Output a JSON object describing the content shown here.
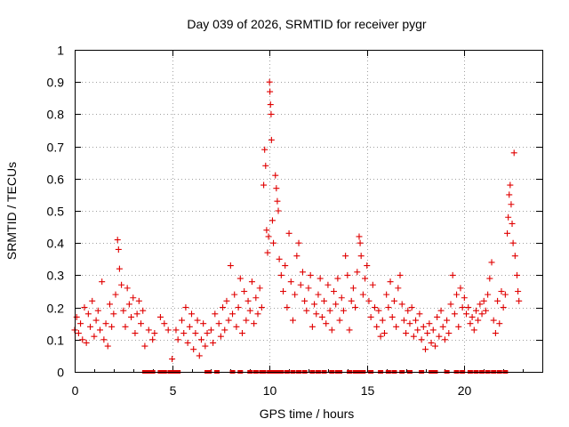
{
  "chart_data": {
    "type": "scatter",
    "title": "Day 039 of 2026, SRMTID for receiver pygr",
    "xlabel": "GPS time / hours",
    "ylabel": "SRMTID / TECUs",
    "xlim": [
      0,
      24
    ],
    "ylim": [
      0,
      1
    ],
    "xticks": [
      0,
      5,
      10,
      15,
      20
    ],
    "xtick_labels": [
      "0",
      "5",
      "10",
      "15",
      "20"
    ],
    "yticks": [
      0,
      0.1,
      0.2,
      0.3,
      0.4,
      0.5,
      0.6,
      0.7,
      0.8,
      0.9,
      1
    ],
    "ytick_labels": [
      "0",
      "0.1",
      "0.2",
      "0.3",
      "0.4",
      "0.5",
      "0.6",
      "0.7",
      "0.8",
      "0.9",
      "1"
    ],
    "grid": true,
    "marker": "+",
    "color": "#e00000",
    "series": [
      {
        "name": "SRMTID",
        "points": [
          [
            0.0,
            0.13
          ],
          [
            0.1,
            0.17
          ],
          [
            0.2,
            0.12
          ],
          [
            0.3,
            0.15
          ],
          [
            0.4,
            0.1
          ],
          [
            0.5,
            0.2
          ],
          [
            0.6,
            0.09
          ],
          [
            0.7,
            0.18
          ],
          [
            0.8,
            0.14
          ],
          [
            0.9,
            0.22
          ],
          [
            1.0,
            0.11
          ],
          [
            1.1,
            0.16
          ],
          [
            1.2,
            0.19
          ],
          [
            1.3,
            0.13
          ],
          [
            1.4,
            0.28
          ],
          [
            1.5,
            0.1
          ],
          [
            1.6,
            0.15
          ],
          [
            1.7,
            0.08
          ],
          [
            1.8,
            0.21
          ],
          [
            1.9,
            0.14
          ],
          [
            2.0,
            0.18
          ],
          [
            2.1,
            0.24
          ],
          [
            2.2,
            0.41
          ],
          [
            2.25,
            0.38
          ],
          [
            2.3,
            0.32
          ],
          [
            2.4,
            0.27
          ],
          [
            2.5,
            0.19
          ],
          [
            2.6,
            0.14
          ],
          [
            2.7,
            0.26
          ],
          [
            2.8,
            0.21
          ],
          [
            2.9,
            0.17
          ],
          [
            3.0,
            0.23
          ],
          [
            3.1,
            0.12
          ],
          [
            3.2,
            0.18
          ],
          [
            3.3,
            0.22
          ],
          [
            3.4,
            0.15
          ],
          [
            3.5,
            0.19
          ],
          [
            3.6,
            0.08
          ],
          [
            3.8,
            0.13
          ],
          [
            4.0,
            0.1
          ],
          [
            4.1,
            0.12
          ],
          [
            4.4,
            0.17
          ],
          [
            4.6,
            0.15
          ],
          [
            4.8,
            0.13
          ],
          [
            5.0,
            0.04
          ],
          [
            5.2,
            0.13
          ],
          [
            5.3,
            0.1
          ],
          [
            5.5,
            0.16
          ],
          [
            5.6,
            0.12
          ],
          [
            5.7,
            0.2
          ],
          [
            5.8,
            0.09
          ],
          [
            5.9,
            0.14
          ],
          [
            6.0,
            0.18
          ],
          [
            6.1,
            0.07
          ],
          [
            6.2,
            0.12
          ],
          [
            6.3,
            0.16
          ],
          [
            6.4,
            0.05
          ],
          [
            6.5,
            0.1
          ],
          [
            6.6,
            0.15
          ],
          [
            6.7,
            0.08
          ],
          [
            6.8,
            0.12
          ],
          [
            7.0,
            0.13
          ],
          [
            7.1,
            0.09
          ],
          [
            7.2,
            0.18
          ],
          [
            7.4,
            0.15
          ],
          [
            7.5,
            0.11
          ],
          [
            7.6,
            0.2
          ],
          [
            7.7,
            0.13
          ],
          [
            7.8,
            0.22
          ],
          [
            7.9,
            0.16
          ],
          [
            8.0,
            0.33
          ],
          [
            8.1,
            0.18
          ],
          [
            8.2,
            0.24
          ],
          [
            8.3,
            0.14
          ],
          [
            8.4,
            0.2
          ],
          [
            8.5,
            0.29
          ],
          [
            8.6,
            0.12
          ],
          [
            8.7,
            0.25
          ],
          [
            8.8,
            0.16
          ],
          [
            8.9,
            0.22
          ],
          [
            9.0,
            0.19
          ],
          [
            9.1,
            0.28
          ],
          [
            9.2,
            0.15
          ],
          [
            9.3,
            0.23
          ],
          [
            9.4,
            0.18
          ],
          [
            9.5,
            0.26
          ],
          [
            9.6,
            0.2
          ],
          [
            9.7,
            0.58
          ],
          [
            9.75,
            0.69
          ],
          [
            9.8,
            0.64
          ],
          [
            9.85,
            0.44
          ],
          [
            9.9,
            0.37
          ],
          [
            9.95,
            0.42
          ],
          [
            10.0,
            0.9
          ],
          [
            10.02,
            0.87
          ],
          [
            10.05,
            0.83
          ],
          [
            10.08,
            0.8
          ],
          [
            10.1,
            0.72
          ],
          [
            10.15,
            0.47
          ],
          [
            10.2,
            0.4
          ],
          [
            10.3,
            0.61
          ],
          [
            10.35,
            0.57
          ],
          [
            10.4,
            0.53
          ],
          [
            10.45,
            0.5
          ],
          [
            10.5,
            0.35
          ],
          [
            10.6,
            0.3
          ],
          [
            10.7,
            0.25
          ],
          [
            10.8,
            0.33
          ],
          [
            10.9,
            0.2
          ],
          [
            11.0,
            0.43
          ],
          [
            11.1,
            0.28
          ],
          [
            11.2,
            0.16
          ],
          [
            11.3,
            0.24
          ],
          [
            11.4,
            0.36
          ],
          [
            11.5,
            0.4
          ],
          [
            11.6,
            0.27
          ],
          [
            11.7,
            0.31
          ],
          [
            11.8,
            0.22
          ],
          [
            11.9,
            0.19
          ],
          [
            12.0,
            0.26
          ],
          [
            12.1,
            0.3
          ],
          [
            12.2,
            0.14
          ],
          [
            12.3,
            0.21
          ],
          [
            12.4,
            0.18
          ],
          [
            12.5,
            0.24
          ],
          [
            12.6,
            0.29
          ],
          [
            12.7,
            0.17
          ],
          [
            12.8,
            0.22
          ],
          [
            12.9,
            0.15
          ],
          [
            13.0,
            0.27
          ],
          [
            13.1,
            0.19
          ],
          [
            13.2,
            0.13
          ],
          [
            13.3,
            0.25
          ],
          [
            13.4,
            0.21
          ],
          [
            13.5,
            0.29
          ],
          [
            13.6,
            0.16
          ],
          [
            13.7,
            0.23
          ],
          [
            13.8,
            0.19
          ],
          [
            13.9,
            0.36
          ],
          [
            14.0,
            0.3
          ],
          [
            14.1,
            0.13
          ],
          [
            14.2,
            0.22
          ],
          [
            14.3,
            0.26
          ],
          [
            14.4,
            0.2
          ],
          [
            14.5,
            0.31
          ],
          [
            14.6,
            0.42
          ],
          [
            14.65,
            0.4
          ],
          [
            14.7,
            0.36
          ],
          [
            14.8,
            0.24
          ],
          [
            14.9,
            0.29
          ],
          [
            15.0,
            0.33
          ],
          [
            15.1,
            0.22
          ],
          [
            15.2,
            0.17
          ],
          [
            15.3,
            0.27
          ],
          [
            15.4,
            0.2
          ],
          [
            15.5,
            0.14
          ],
          [
            15.6,
            0.19
          ],
          [
            15.7,
            0.11
          ],
          [
            15.8,
            0.16
          ],
          [
            15.9,
            0.12
          ],
          [
            16.0,
            0.24
          ],
          [
            16.1,
            0.2
          ],
          [
            16.2,
            0.28
          ],
          [
            16.3,
            0.17
          ],
          [
            16.4,
            0.22
          ],
          [
            16.5,
            0.14
          ],
          [
            16.6,
            0.26
          ],
          [
            16.7,
            0.3
          ],
          [
            16.8,
            0.21
          ],
          [
            16.9,
            0.16
          ],
          [
            17.0,
            0.12
          ],
          [
            17.1,
            0.19
          ],
          [
            17.2,
            0.15
          ],
          [
            17.3,
            0.2
          ],
          [
            17.4,
            0.11
          ],
          [
            17.5,
            0.16
          ],
          [
            17.6,
            0.13
          ],
          [
            17.7,
            0.18
          ],
          [
            17.8,
            0.1
          ],
          [
            17.9,
            0.14
          ],
          [
            18.0,
            0.07
          ],
          [
            18.1,
            0.12
          ],
          [
            18.2,
            0.15
          ],
          [
            18.3,
            0.09
          ],
          [
            18.4,
            0.13
          ],
          [
            18.5,
            0.08
          ],
          [
            18.6,
            0.17
          ],
          [
            18.7,
            0.11
          ],
          [
            18.8,
            0.19
          ],
          [
            18.9,
            0.14
          ],
          [
            19.0,
            0.1
          ],
          [
            19.1,
            0.16
          ],
          [
            19.2,
            0.12
          ],
          [
            19.3,
            0.21
          ],
          [
            19.4,
            0.3
          ],
          [
            19.5,
            0.18
          ],
          [
            19.6,
            0.24
          ],
          [
            19.7,
            0.14
          ],
          [
            19.8,
            0.26
          ],
          [
            19.9,
            0.2
          ],
          [
            20.0,
            0.23
          ],
          [
            20.1,
            0.18
          ],
          [
            20.2,
            0.2
          ],
          [
            20.3,
            0.15
          ],
          [
            20.4,
            0.17
          ],
          [
            20.5,
            0.13
          ],
          [
            20.6,
            0.19
          ],
          [
            20.7,
            0.16
          ],
          [
            20.8,
            0.21
          ],
          [
            20.9,
            0.18
          ],
          [
            21.0,
            0.22
          ],
          [
            21.1,
            0.19
          ],
          [
            21.2,
            0.24
          ],
          [
            21.3,
            0.29
          ],
          [
            21.4,
            0.34
          ],
          [
            21.5,
            0.16
          ],
          [
            21.6,
            0.12
          ],
          [
            21.7,
            0.22
          ],
          [
            21.8,
            0.15
          ],
          [
            21.9,
            0.25
          ],
          [
            22.0,
            0.2
          ],
          [
            22.1,
            0.24
          ],
          [
            22.2,
            0.43
          ],
          [
            22.25,
            0.48
          ],
          [
            22.3,
            0.55
          ],
          [
            22.35,
            0.58
          ],
          [
            22.4,
            0.52
          ],
          [
            22.45,
            0.46
          ],
          [
            22.5,
            0.4
          ],
          [
            22.55,
            0.68
          ],
          [
            22.6,
            0.36
          ],
          [
            22.7,
            0.3
          ],
          [
            22.75,
            0.25
          ],
          [
            22.8,
            0.22
          ]
        ]
      }
    ],
    "zero_points_x": [
      3.6,
      3.7,
      3.8,
      3.9,
      4.0,
      4.4,
      4.6,
      4.9,
      5.0,
      5.1,
      5.2,
      5.3,
      6.8,
      6.9,
      7.3,
      8.1,
      8.5,
      9.0,
      9.3,
      9.6,
      9.7,
      10.0,
      10.2,
      10.4,
      10.6,
      10.9,
      11.2,
      11.5,
      11.8,
      12.2,
      12.5,
      12.8,
      13.2,
      13.5,
      13.6,
      14.1,
      14.4,
      14.6,
      14.8,
      15.2,
      15.7,
      16.1,
      16.4,
      16.8,
      17.2,
      17.8,
      18.3,
      18.5,
      19.1,
      19.6,
      19.9,
      20.3,
      20.6,
      20.9,
      21.2,
      21.5,
      21.8,
      22.1
    ]
  }
}
